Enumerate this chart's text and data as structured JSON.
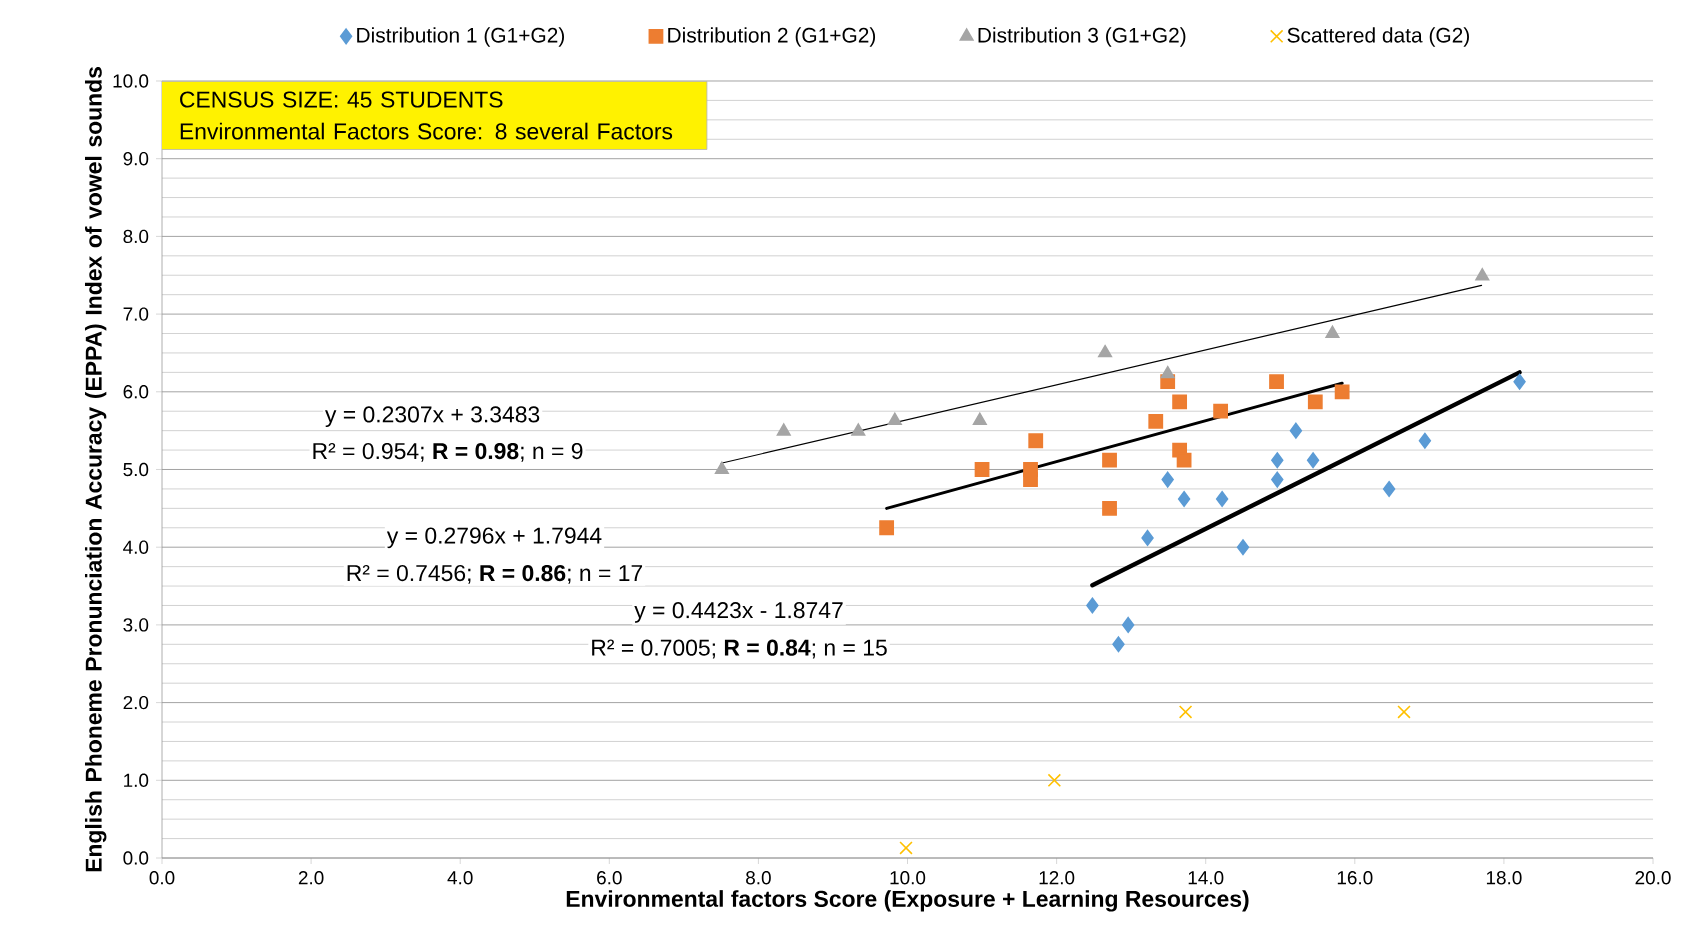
{
  "chart_data": {
    "type": "scatter",
    "xlabel": "Environmental  factors Score (Exposure + Learning Resources)",
    "ylabel": "English Phoneme Pronunciation Accuracy (EPPA) Index  of vowel sounds",
    "xlim": [
      0,
      20
    ],
    "ylim": [
      0,
      10
    ],
    "xticks": [
      {
        "value": 0,
        "label": "0.0"
      },
      {
        "value": 2,
        "label": "2.0"
      },
      {
        "value": 4,
        "label": "4.0"
      },
      {
        "value": 6,
        "label": "6.0"
      },
      {
        "value": 8,
        "label": "8.0"
      },
      {
        "value": 10,
        "label": "10.0"
      },
      {
        "value": 12,
        "label": "12.0"
      },
      {
        "value": 14,
        "label": "14.0"
      },
      {
        "value": 16,
        "label": "16.0"
      },
      {
        "value": 18,
        "label": "18.0"
      },
      {
        "value": 20,
        "label": "20.0"
      }
    ],
    "yticks": [
      {
        "value": 0,
        "label": "0.0"
      },
      {
        "value": 1,
        "label": "1.0"
      },
      {
        "value": 2,
        "label": "2.0"
      },
      {
        "value": 3,
        "label": "3.0"
      },
      {
        "value": 4,
        "label": "4.0"
      },
      {
        "value": 5,
        "label": "5.0"
      },
      {
        "value": 6,
        "label": "6.0"
      },
      {
        "value": 7,
        "label": "7.0"
      },
      {
        "value": 8,
        "label": "8.0"
      },
      {
        "value": 9,
        "label": "9.0"
      },
      {
        "value": 10,
        "label": "10.0"
      }
    ],
    "grid": "y",
    "legend": "top",
    "series": [
      {
        "name": "Distribution 1 (G1+G2)",
        "color": "#5b9bd5",
        "marker": "diamond",
        "x": [
          12.48,
          12.96,
          12.83,
          13.22,
          13.49,
          13.71,
          14.22,
          14.5,
          14.96,
          14.96,
          15.21,
          15.44,
          16.46,
          16.94,
          18.21
        ],
        "values": [
          3.25,
          3.0,
          2.75,
          4.12,
          4.87,
          4.62,
          4.62,
          4.0,
          5.12,
          4.87,
          5.5,
          5.12,
          4.75,
          5.37,
          6.13
        ]
      },
      {
        "name": "Distribution 2 (G1+G2)",
        "color": "#ed7d31",
        "marker": "square",
        "x": [
          9.72,
          11.0,
          11.65,
          11.65,
          11.72,
          12.71,
          12.71,
          13.33,
          13.49,
          13.65,
          13.65,
          13.71,
          14.2,
          14.95,
          15.47,
          15.83
        ],
        "values": [
          4.25,
          5.0,
          5.0,
          4.87,
          5.37,
          5.12,
          4.5,
          5.62,
          6.13,
          5.87,
          5.25,
          5.12,
          5.75,
          6.13,
          5.87,
          6.0
        ]
      },
      {
        "name": "Distribution 3 (G1+G2)",
        "color": "#a5a5a5",
        "marker": "triangle",
        "x": [
          7.51,
          8.34,
          9.34,
          9.83,
          10.97,
          12.65,
          13.49,
          15.7,
          17.71
        ],
        "values": [
          5.0,
          5.49,
          5.49,
          5.63,
          5.63,
          6.5,
          6.23,
          6.75,
          7.49
        ]
      },
      {
        "name": "Scattered data (G2)",
        "color": "#ffc000",
        "marker": "cross",
        "x": [
          9.98,
          11.97,
          13.73,
          16.66
        ],
        "values": [
          0.13,
          1.0,
          1.88,
          1.88
        ]
      },
      {
        "type": "line",
        "color": "#000000",
        "x": [
          12.48,
          18.21
        ],
        "values": [
          3.51,
          6.25
        ]
      },
      {
        "type": "line",
        "color": "#000000",
        "x": [
          9.72,
          15.83
        ],
        "values": [
          4.5,
          6.11
        ]
      },
      {
        "type": "line",
        "color": "#000000",
        "x": [
          7.5,
          17.7
        ],
        "values": [
          5.08,
          7.37
        ]
      }
    ],
    "annotations": [
      "CENSUS SIZE: 45 STUDENTS",
      "Environmental Factors Score: 8 several Factors",
      "y = 0.2307x + 3.3483",
      "R² = 0.954;  **R = 0.98**;  n = 9",
      "y = 0.2796x + 1.7944",
      "R² = 0.7456;  **R = 0.86**;  n = 17",
      "y = 0.4423x - 1.8747",
      "R² = 0.7005;  **R = 0.84**;  n = 15"
    ]
  }
}
